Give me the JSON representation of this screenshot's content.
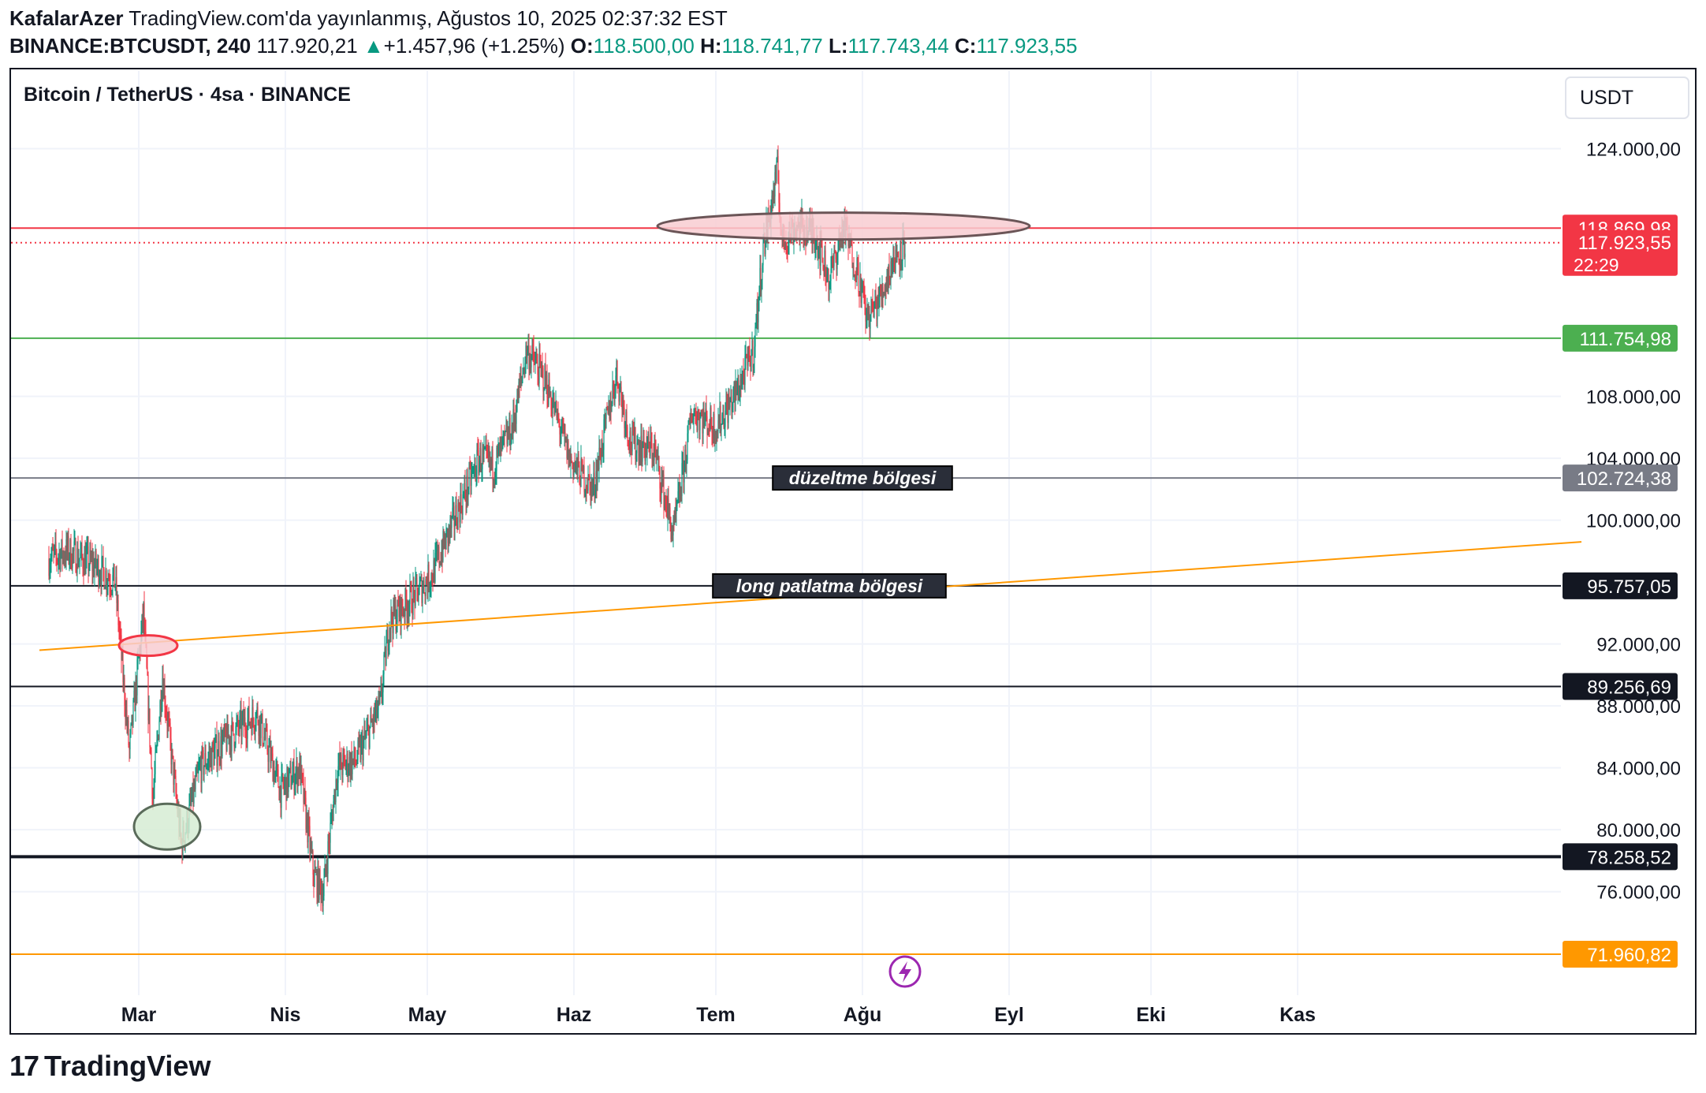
{
  "header": {
    "author": "KafalarAzer",
    "published": "TradingView.com'da yayınlanmış, Ağustos 10, 2025 02:37:32 EST",
    "symbol": "BINANCE:BTCUSDT, 240",
    "last": "117.920,21",
    "change_arrow": "▲",
    "change": "+1.457,96 (+1.25%)",
    "o_label": "O:",
    "o": "118.500,00",
    "h_label": "H:",
    "h": "118.741,77",
    "l_label": "L:",
    "l": "117.743,44",
    "c_label": "C:",
    "c": "117.923,55"
  },
  "chart_title": "Bitcoin / TetherUS · 4sa · BINANCE",
  "currency_button": "USDT",
  "footer": {
    "logo": "17",
    "brand": "TradingView"
  },
  "colors": {
    "up": "#089981",
    "down": "#f23645",
    "orange": "#ff9800",
    "green_line": "#4caf50"
  },
  "chart_data": {
    "type": "candlestick",
    "title": "Bitcoin / TetherUS · 4sa · BINANCE",
    "y_axis_ticks": [
      76000,
      80000,
      84000,
      88000,
      92000,
      100000,
      104000,
      108000,
      124000
    ],
    "y_tick_labels": [
      "76.000,00",
      "80.000,00",
      "84.000,00",
      "88.000,00",
      "92.000,00",
      "100.000,00",
      "104.000,00",
      "108.000,00",
      "124.000,00"
    ],
    "x_tick_labels": [
      "Mar",
      "Nis",
      "May",
      "Haz",
      "Tem",
      "Ağu",
      "Eyl",
      "Eki",
      "Kas"
    ],
    "close_series_keypoints": [
      [
        "2025-02-10",
        97500
      ],
      [
        "2025-02-14",
        98000
      ],
      [
        "2025-02-20",
        97000
      ],
      [
        "2025-02-24",
        96000
      ],
      [
        "2025-02-27",
        85000
      ],
      [
        "2025-03-02",
        94000
      ],
      [
        "2025-03-04",
        82000
      ],
      [
        "2025-03-06",
        90000
      ],
      [
        "2025-03-10",
        79000
      ],
      [
        "2025-03-14",
        84000
      ],
      [
        "2025-03-20",
        86000
      ],
      [
        "2025-03-26",
        87500
      ],
      [
        "2025-03-31",
        82500
      ],
      [
        "2025-04-04",
        84000
      ],
      [
        "2025-04-07",
        77000
      ],
      [
        "2025-04-09",
        76000
      ],
      [
        "2025-04-12",
        84000
      ],
      [
        "2025-04-16",
        84500
      ],
      [
        "2025-04-21",
        88000
      ],
      [
        "2025-04-23",
        93500
      ],
      [
        "2025-04-28",
        95000
      ],
      [
        "2025-05-02",
        96500
      ],
      [
        "2025-05-08",
        101000
      ],
      [
        "2025-05-12",
        104000
      ],
      [
        "2025-05-15",
        103500
      ],
      [
        "2025-05-19",
        106000
      ],
      [
        "2025-05-22",
        111000
      ],
      [
        "2025-05-26",
        109000
      ],
      [
        "2025-05-31",
        104000
      ],
      [
        "2025-06-05",
        102000
      ],
      [
        "2025-06-10",
        109500
      ],
      [
        "2025-06-13",
        105000
      ],
      [
        "2025-06-18",
        104500
      ],
      [
        "2025-06-22",
        99000
      ],
      [
        "2025-06-26",
        107000
      ],
      [
        "2025-07-01",
        106000
      ],
      [
        "2025-07-05",
        108000
      ],
      [
        "2025-07-09",
        111000
      ],
      [
        "2025-07-11",
        117500
      ],
      [
        "2025-07-14",
        122500
      ],
      [
        "2025-07-15",
        118000
      ],
      [
        "2025-07-18",
        119000
      ],
      [
        "2025-07-22",
        118500
      ],
      [
        "2025-07-25",
        115500
      ],
      [
        "2025-07-28",
        119000
      ],
      [
        "2025-07-31",
        116000
      ],
      [
        "2025-08-02",
        113000
      ],
      [
        "2025-08-05",
        114500
      ],
      [
        "2025-08-07",
        116500
      ],
      [
        "2025-08-10",
        117923.55
      ]
    ],
    "price_lines": [
      {
        "value": 118869.98,
        "label": "118.869,98",
        "color": "#f23645",
        "style": "solid"
      },
      {
        "value": 117923.55,
        "label": "117.923,55",
        "color": "#f23645",
        "style": "dotted",
        "countdown": "22:29"
      },
      {
        "value": 111754.98,
        "label": "111.754,98",
        "color": "#4caf50",
        "style": "solid"
      },
      {
        "value": 102724.38,
        "label": "102.724,38",
        "color": "#787b86",
        "style": "solid"
      },
      {
        "value": 95757.05,
        "label": "95.757,05",
        "color": "#131722",
        "style": "solid"
      },
      {
        "value": 89256.69,
        "label": "89.256,69",
        "color": "#131722",
        "style": "solid"
      },
      {
        "value": 78258.52,
        "label": "78.258,52",
        "color": "#131722",
        "style": "thick"
      },
      {
        "value": 71960.82,
        "label": "71.960,82",
        "color": "#ff9800",
        "style": "solid"
      }
    ],
    "trendline": {
      "from": [
        "2025-02-08",
        91600
      ],
      "to": [
        "2025-12-31",
        98600
      ],
      "color": "#ff9800"
    },
    "annotations": [
      {
        "text": "düzeltme bölgesi",
        "at": [
          "2025-08-01",
          102724.38
        ]
      },
      {
        "text": "long patlatma bölgesi",
        "at": [
          "2025-07-25",
          95757.05
        ]
      }
    ],
    "highlight_ellipses": [
      {
        "center": [
          "2025-07-28",
          119000
        ],
        "fill": "#f8cdd1",
        "stroke": "#6b5557"
      },
      {
        "center": [
          "2025-03-03",
          91900
        ],
        "fill": "#f8cdd1",
        "stroke": "#f23645"
      },
      {
        "center": [
          "2025-03-07",
          80200
        ],
        "fill": "#d6ecd3",
        "stroke": "#5a6b5a"
      }
    ]
  }
}
